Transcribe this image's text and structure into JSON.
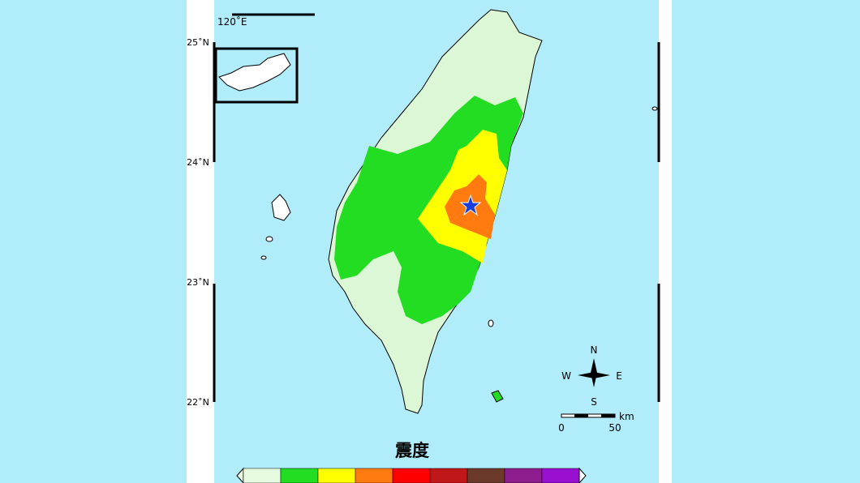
{
  "map": {
    "lon_label": "120˚E",
    "lat_labels": [
      "25˚N",
      "24˚N",
      "23˚N",
      "22˚N"
    ],
    "compass": {
      "north": "N",
      "south": "S",
      "east": "E",
      "west": "W"
    },
    "scale_bar": {
      "unit": "km",
      "start": "0",
      "end": "50"
    },
    "intensity_scale": {
      "title": "震度",
      "colors": [
        "#e6fbe0",
        "#22dd22",
        "#ffff00",
        "#ff7b10",
        "#ff0000",
        "#c01818",
        "#6b3a2a",
        "#8e1e8e",
        "#9a10d0"
      ]
    }
  }
}
